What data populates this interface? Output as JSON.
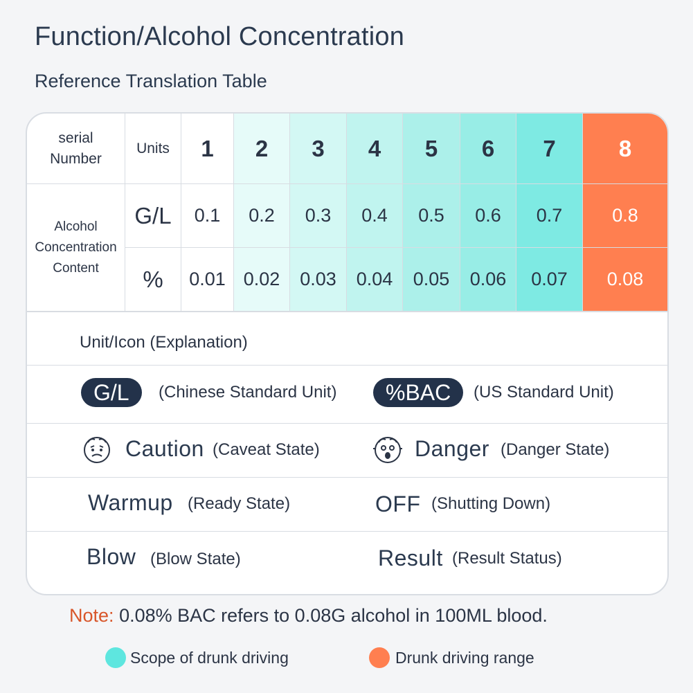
{
  "title": "Function/Alcohol Concentration",
  "subtitle": "Reference Translation Table",
  "table": {
    "serial_label": "serial Number",
    "units_label": "Units",
    "side_label": "Alcohol Concentration Content",
    "unit_gl": "G/L",
    "unit_pct": "%",
    "numbers": [
      "1",
      "2",
      "3",
      "4",
      "5",
      "6",
      "7",
      "8"
    ],
    "gl_values": [
      "0.1",
      "0.2",
      "0.3",
      "0.4",
      "0.5",
      "0.6",
      "0.7",
      "0.8"
    ],
    "pct_values": [
      "0.01",
      "0.02",
      "0.03",
      "0.04",
      "0.05",
      "0.06",
      "0.07",
      "0.08"
    ]
  },
  "explanation": {
    "title": "Unit/Icon (Explanation)",
    "gl_pill": "G/L",
    "gl_desc": "(Chinese Standard Unit)",
    "bac_pill": "%BAC",
    "bac_desc": "(US Standard Unit)",
    "caution_word": "Caution",
    "caution_desc": "(Caveat State)",
    "danger_word": "Danger",
    "danger_desc": "(Danger State)",
    "warmup_word": "Warmup",
    "warmup_desc": "(Ready State)",
    "off_word": "OFF",
    "off_desc": "(Shutting Down)",
    "blow_word": "Blow",
    "blow_desc": "(Blow State)",
    "result_word": "Result",
    "result_desc": "(Result Status)"
  },
  "note": {
    "label": "Note:",
    "text": "0.08% BAC refers to 0.08G alcohol in 100ML blood."
  },
  "legend": {
    "cyan_label": "Scope of drunk driving",
    "orange_label": "Drunk driving range"
  },
  "colors": {
    "cyan": "#5ee6df",
    "orange": "#ff7f50",
    "pill": "#23324a"
  }
}
